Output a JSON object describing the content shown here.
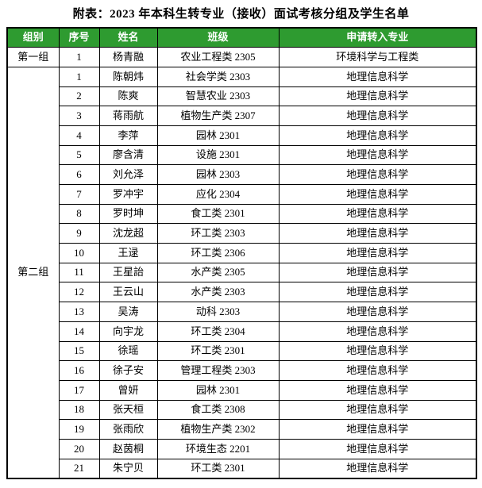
{
  "title": "附表：2023 年本科生转专业（接收）面试考核分组及学生名单",
  "colors": {
    "header_bg": "#2E9B30",
    "header_text": "#FFFFFF",
    "border": "#000000",
    "body_text": "#000000"
  },
  "table": {
    "headers": [
      "组别",
      "序号",
      "姓名",
      "班级",
      "申请转入专业"
    ],
    "groups": [
      {
        "name": "第一组",
        "rows": [
          {
            "no": "1",
            "name": "杨青融",
            "class": "农业工程类 2305",
            "major": "环境科学与工程类"
          }
        ]
      },
      {
        "name": "第二组",
        "rows": [
          {
            "no": "1",
            "name": "陈朝炜",
            "class": "社会学类 2303",
            "major": "地理信息科学"
          },
          {
            "no": "2",
            "name": "陈爽",
            "class": "智慧农业 2303",
            "major": "地理信息科学"
          },
          {
            "no": "3",
            "name": "蒋雨航",
            "class": "植物生产类 2307",
            "major": "地理信息科学"
          },
          {
            "no": "4",
            "name": "李萍",
            "class": "园林 2301",
            "major": "地理信息科学"
          },
          {
            "no": "5",
            "name": "廖含清",
            "class": "设施 2301",
            "major": "地理信息科学"
          },
          {
            "no": "6",
            "name": "刘允泽",
            "class": "园林 2303",
            "major": "地理信息科学"
          },
          {
            "no": "7",
            "name": "罗冲宇",
            "class": "应化 2304",
            "major": "地理信息科学"
          },
          {
            "no": "8",
            "name": "罗时坤",
            "class": "食工类 2301",
            "major": "地理信息科学"
          },
          {
            "no": "9",
            "name": "沈龙超",
            "class": "环工类 2303",
            "major": "地理信息科学"
          },
          {
            "no": "10",
            "name": "王逯",
            "class": "环工类 2306",
            "major": "地理信息科学"
          },
          {
            "no": "11",
            "name": "王星詒",
            "class": "水产类 2305",
            "major": "地理信息科学"
          },
          {
            "no": "12",
            "name": "王云山",
            "class": "水产类 2303",
            "major": "地理信息科学"
          },
          {
            "no": "13",
            "name": "吴涛",
            "class": "动科 2303",
            "major": "地理信息科学"
          },
          {
            "no": "14",
            "name": "向宇龙",
            "class": "环工类 2304",
            "major": "地理信息科学"
          },
          {
            "no": "15",
            "name": "徐瑶",
            "class": "环工类 2301",
            "major": "地理信息科学"
          },
          {
            "no": "16",
            "name": "徐子安",
            "class": "管理工程类 2303",
            "major": "地理信息科学"
          },
          {
            "no": "17",
            "name": "曾妍",
            "class": "园林 2301",
            "major": "地理信息科学"
          },
          {
            "no": "18",
            "name": "张天桓",
            "class": "食工类 2308",
            "major": "地理信息科学"
          },
          {
            "no": "19",
            "name": "张雨欣",
            "class": "植物生产类 2302",
            "major": "地理信息科学"
          },
          {
            "no": "20",
            "name": "赵茵桐",
            "class": "环境生态 2201",
            "major": "地理信息科学"
          },
          {
            "no": "21",
            "name": "朱宁贝",
            "class": "环工类 2301",
            "major": "地理信息科学"
          }
        ]
      }
    ]
  }
}
